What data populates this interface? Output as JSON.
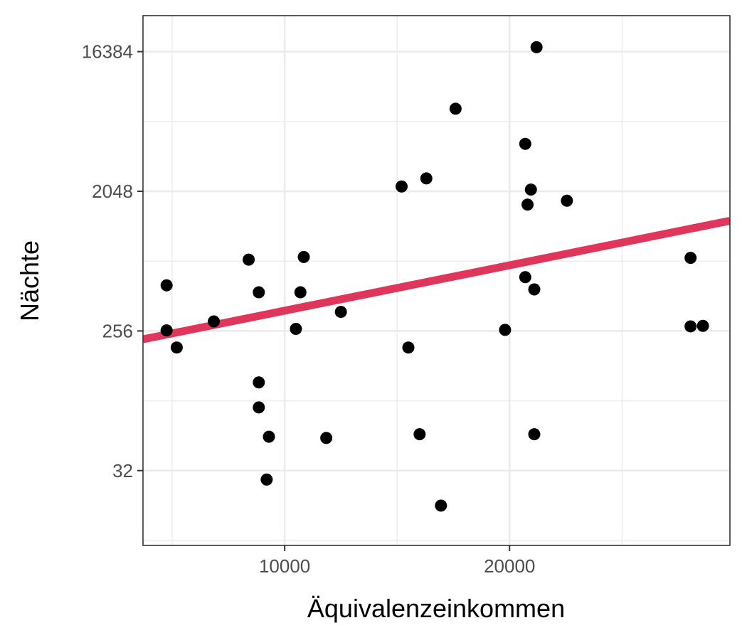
{
  "chart_data": {
    "type": "scatter",
    "title": "",
    "xlabel": "Äquivalenzeinkommen",
    "ylabel": "Nächte",
    "xlim": [
      3700,
      29800
    ],
    "ylim": [
      10.5,
      28000
    ],
    "y_scale": "log2",
    "x_ticks": [
      10000,
      20000
    ],
    "x_tick_labels": [
      "10000",
      "20000"
    ],
    "y_ticks": [
      32,
      256,
      2048,
      16384
    ],
    "y_tick_labels": [
      "32",
      "256",
      "2048",
      "16384"
    ],
    "grid": true,
    "legend": "none",
    "colors": {
      "points": "#000000",
      "trend": "#e0365b",
      "grid": "#ebebeb",
      "panel_border": "#333333"
    },
    "trend_line": {
      "x": [
        3700,
        29800
      ],
      "y": [
        226,
        1320
      ]
    },
    "points": [
      {
        "x": 21200,
        "y": 17500
      },
      {
        "x": 17600,
        "y": 7000
      },
      {
        "x": 20700,
        "y": 4150
      },
      {
        "x": 16300,
        "y": 2480
      },
      {
        "x": 15200,
        "y": 2200
      },
      {
        "x": 20950,
        "y": 2100
      },
      {
        "x": 20800,
        "y": 1680
      },
      {
        "x": 22550,
        "y": 1780
      },
      {
        "x": 28050,
        "y": 760
      },
      {
        "x": 8400,
        "y": 740
      },
      {
        "x": 10850,
        "y": 770
      },
      {
        "x": 20700,
        "y": 570
      },
      {
        "x": 4750,
        "y": 505
      },
      {
        "x": 8850,
        "y": 455
      },
      {
        "x": 10700,
        "y": 455
      },
      {
        "x": 21100,
        "y": 475
      },
      {
        "x": 12500,
        "y": 340
      },
      {
        "x": 6850,
        "y": 295
      },
      {
        "x": 4750,
        "y": 258
      },
      {
        "x": 5200,
        "y": 200
      },
      {
        "x": 10500,
        "y": 264
      },
      {
        "x": 15500,
        "y": 200
      },
      {
        "x": 19800,
        "y": 260
      },
      {
        "x": 28050,
        "y": 274
      },
      {
        "x": 28600,
        "y": 276
      },
      {
        "x": 8850,
        "y": 119
      },
      {
        "x": 8850,
        "y": 82
      },
      {
        "x": 9300,
        "y": 53
      },
      {
        "x": 11850,
        "y": 52
      },
      {
        "x": 16000,
        "y": 55
      },
      {
        "x": 21100,
        "y": 55
      },
      {
        "x": 9200,
        "y": 28
      },
      {
        "x": 16950,
        "y": 19
      }
    ]
  }
}
